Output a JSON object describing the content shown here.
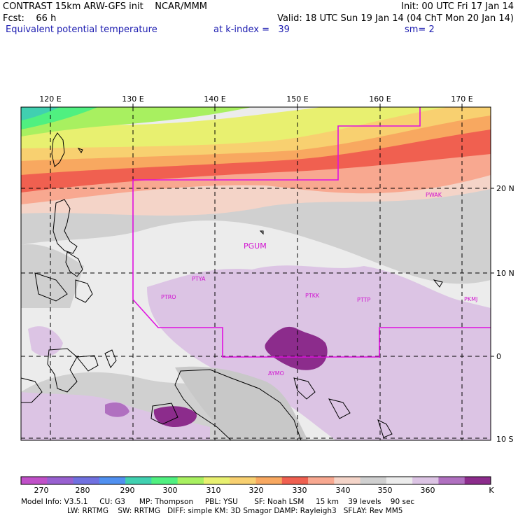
{
  "header": {
    "model_line": "CONTRAST 15km ARW-GFS init    NCAR/MMM",
    "init": "Init: 00 UTC Fri 17 Jan 14",
    "fcst": "Fcst:    66 h",
    "valid": "Valid: 18 UTC Sun 19 Jan 14 (04 ChT Mon 20 Jan 14)",
    "field": "Equivalent potential temperature",
    "level": "at k-index =   39",
    "smooth": "sm= 2"
  },
  "map": {
    "lon_labels": [
      "120 E",
      "130 E",
      "140 E",
      "150 E",
      "160 E",
      "170 E"
    ],
    "lat_labels": [
      "20 N",
      "10 N",
      "0",
      "10 S"
    ],
    "stations": [
      "PWAK",
      "PGUM",
      "PTYA",
      "PTRO",
      "PTKK",
      "PTTP",
      "PKMJ",
      "AYMO"
    ]
  },
  "colorbar": {
    "labels": [
      "270",
      "280",
      "290",
      "300",
      "310",
      "320",
      "330",
      "340",
      "350",
      "360"
    ],
    "unit": "K",
    "colors": [
      "#c050c8",
      "#9860d0",
      "#7070e0",
      "#5090f0",
      "#40d0b0",
      "#50f080",
      "#a8f060",
      "#e8f070",
      "#f8d070",
      "#f8a860",
      "#f06050",
      "#f8a890",
      "#f4d4c8",
      "#d0d0d0",
      "#ececec",
      "#dcc4e4",
      "#b070c0",
      "#8c2c8c"
    ]
  },
  "footer": {
    "line1": "Model Info: V3.5.1     CU: G3      MP: Thompson     PBL: YSU       SF: Noah LSM     15 km    39 levels    90 sec",
    "line2": "LW: RRTMG    SW: RRTMG   DIFF: simple KM: 3D Smagor DAMP: Rayleigh3   SFLAY: Rev MM5"
  }
}
